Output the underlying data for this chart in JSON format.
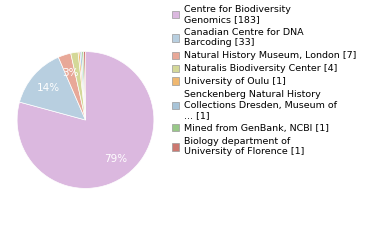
{
  "labels": [
    "Centre for Biodiversity\nGenomics [183]",
    "Canadian Centre for DNA\nBarcoding [33]",
    "Natural History Museum, London [7]",
    "Naturalis Biodiversity Center [4]",
    "University of Oulu [1]",
    "Senckenberg Natural History\nCollections Dresden, Museum of\n... [1]",
    "Mined from GenBank, NCBI [1]",
    "Biology department of\nUniversity of Florence [1]"
  ],
  "values": [
    183,
    33,
    7,
    4,
    1,
    1,
    1,
    1
  ],
  "colors": [
    "#dbb8df",
    "#b8cfe0",
    "#e8a898",
    "#d4d898",
    "#f0b870",
    "#a8c4d8",
    "#98c888",
    "#cc7870"
  ],
  "autopct_threshold": 2.5,
  "background_color": "#ffffff",
  "legend_fontsize": 6.8,
  "text_fontsize": 7.5
}
